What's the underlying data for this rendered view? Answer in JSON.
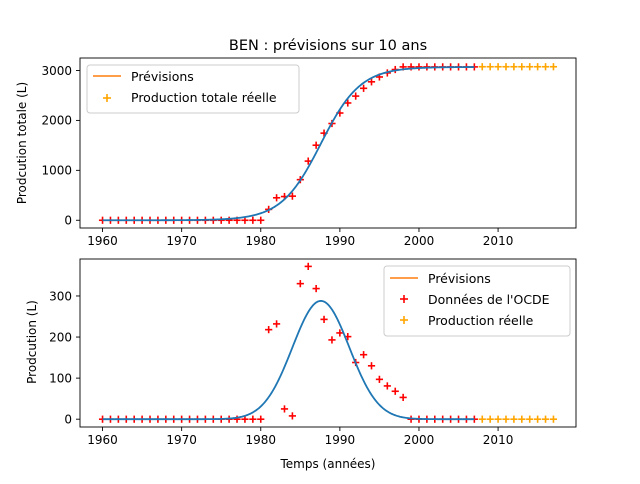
{
  "chart_data": [
    {
      "type": "scatter",
      "title": "BEN : prévisions sur 10 ans",
      "xlabel": "",
      "ylabel": "Prodcution totale (L)",
      "xlim": [
        1957.15,
        2019.85
      ],
      "ylim": [
        -155,
        3250
      ],
      "xticks": [
        1960,
        1970,
        1980,
        1990,
        2000,
        2010
      ],
      "xtick_labels": [
        "1960",
        "1970",
        "1980",
        "1990",
        "2000",
        "2010"
      ],
      "yticks": [
        0,
        1000,
        2000,
        3000
      ],
      "ytick_labels": [
        "0",
        "1000",
        "2000",
        "3000"
      ],
      "grid": false,
      "legend_position": "top-left",
      "legend": {
        "forecast_label": "Prévisions",
        "reel_label": "Production totale réelle"
      },
      "colors": {
        "forecast_line": "#ff7f0e",
        "fit_line": "#1f77b4",
        "ocde": "#ff0000",
        "reel": "#ffa500"
      },
      "fit_curve": {
        "x_start": 1960,
        "x_end": 2007,
        "asymptote": 3070,
        "midpoint": 1987.6,
        "steepness": 0.4
      },
      "ocde_points": {
        "x": [
          1960,
          1961,
          1962,
          1963,
          1964,
          1965,
          1966,
          1967,
          1968,
          1969,
          1970,
          1971,
          1972,
          1973,
          1974,
          1975,
          1976,
          1977,
          1978,
          1979,
          1980,
          1981,
          1982,
          1983,
          1984,
          1985,
          1986,
          1987,
          1988,
          1989,
          1990,
          1991,
          1992,
          1993,
          1994,
          1995,
          1996,
          1997,
          1998,
          1999,
          2000,
          2001,
          2002,
          2003,
          2004,
          2005,
          2006,
          2007
        ],
        "y": [
          0,
          0,
          0,
          0,
          0,
          0,
          0,
          0,
          0,
          0,
          0,
          0,
          0,
          0,
          0,
          0,
          0,
          0,
          0,
          0,
          0,
          218,
          450,
          475,
          483,
          813,
          1185,
          1503,
          1745,
          1938,
          2148,
          2349,
          2487,
          2643,
          2773,
          2870,
          2951,
          3019,
          3072,
          3072,
          3072,
          3072,
          3072,
          3072,
          3072,
          3072,
          3072,
          3072
        ]
      },
      "reel_points": {
        "x": [
          2008,
          2009,
          2010,
          2011,
          2012,
          2013,
          2014,
          2015,
          2016,
          2017
        ],
        "y": [
          3075,
          3075,
          3075,
          3075,
          3075,
          3075,
          3075,
          3075,
          3075,
          3075
        ]
      }
    },
    {
      "type": "scatter",
      "title": "",
      "xlabel": "Temps (années)",
      "ylabel": "Prodcution (L)",
      "xlim": [
        1957.15,
        2019.85
      ],
      "ylim": [
        -19,
        390
      ],
      "xticks": [
        1960,
        1970,
        1980,
        1990,
        2000,
        2010
      ],
      "xtick_labels": [
        "1960",
        "1970",
        "1980",
        "1990",
        "2000",
        "2010"
      ],
      "yticks": [
        0,
        100,
        200,
        300
      ],
      "ytick_labels": [
        "0",
        "100",
        "200",
        "300"
      ],
      "grid": false,
      "legend_position": "top-right",
      "legend": {
        "forecast_label": "Prévisions",
        "ocde_label": "Données de l'OCDE",
        "reel_label": "Production réelle"
      },
      "colors": {
        "forecast_line": "#ff7f0e",
        "fit_line": "#1f77b4",
        "ocde": "#ff0000",
        "reel": "#ffa500"
      },
      "fit_curve": {
        "x_start": 1960,
        "x_end": 2007,
        "peak": 288,
        "center": 1987.6,
        "sigma": 3.6
      },
      "ocde_points": {
        "x": [
          1960,
          1961,
          1962,
          1963,
          1964,
          1965,
          1966,
          1967,
          1968,
          1969,
          1970,
          1971,
          1972,
          1973,
          1974,
          1975,
          1976,
          1977,
          1978,
          1979,
          1980,
          1981,
          1982,
          1983,
          1984,
          1985,
          1986,
          1987,
          1988,
          1989,
          1990,
          1991,
          1992,
          1993,
          1994,
          1995,
          1996,
          1997,
          1998,
          1999,
          2000,
          2001,
          2002,
          2003,
          2004,
          2005,
          2006,
          2007
        ],
        "y": [
          0,
          0,
          0,
          0,
          0,
          0,
          0,
          0,
          0,
          0,
          0,
          0,
          0,
          0,
          0,
          0,
          0,
          0,
          0,
          0,
          0,
          218,
          232,
          25,
          8,
          330,
          372,
          318,
          243,
          193,
          210,
          201,
          138,
          157,
          130,
          97,
          81,
          68,
          53,
          0,
          0,
          0,
          0,
          0,
          0,
          0,
          0,
          0
        ]
      },
      "reel_points": {
        "x": [
          2008,
          2009,
          2010,
          2011,
          2012,
          2013,
          2014,
          2015,
          2016,
          2017
        ],
        "y": [
          0,
          0,
          0,
          0,
          0,
          0,
          0,
          0,
          0,
          0
        ]
      }
    }
  ]
}
